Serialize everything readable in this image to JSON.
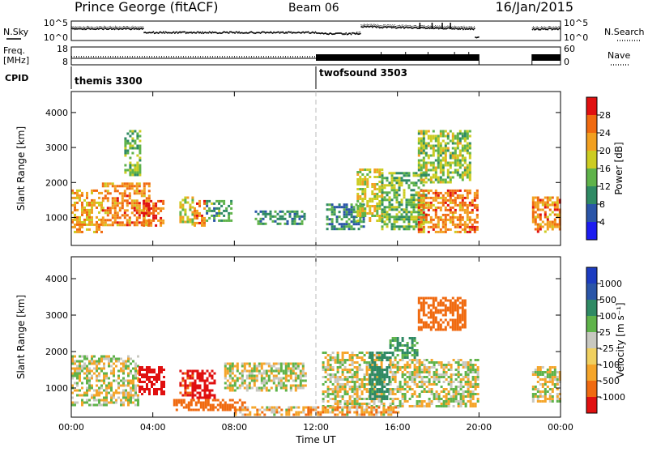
{
  "header": {
    "station": "Prince George (fitACF)",
    "beam": "Beam 06",
    "date": "16/Jan/2015"
  },
  "labels": {
    "nsky": "N.Sky",
    "nsearch": "N.Search",
    "freq_line1": "Freq.",
    "freq_line2": "[MHz]",
    "nave": "Nave",
    "cpid": "CPID",
    "slant_range": "Slant Range [km]",
    "power": "Power [dB]",
    "velocity": "Velocity [m s⁻¹]",
    "time_ut": "Time UT"
  },
  "noise_ticks": {
    "top": "10^5",
    "bottom": "10^0"
  },
  "freq_ticks": {
    "left": [
      "18",
      "8"
    ],
    "right": [
      "60",
      "0"
    ]
  },
  "cpid_segments": [
    {
      "label": "themis 3300",
      "start_hour": 0
    },
    {
      "label": "twofsound 3503",
      "start_hour": 12
    }
  ],
  "colors": {
    "power_scale": [
      "#1c1cf0",
      "#2a55a8",
      "#2f8a64",
      "#5fb34a",
      "#cccc22",
      "#f2a020",
      "#f06a10",
      "#e01010"
    ],
    "velocity_scale": [
      "#e01010",
      "#f06a10",
      "#f5a52a",
      "#f0d060",
      "#c8c8c0",
      "#5fb34a",
      "#2f8a64",
      "#2a55a8",
      "#1c3cc0"
    ],
    "ground_scatter": "#c8c8c0"
  },
  "chart_data": [
    {
      "type": "heatmap",
      "name": "power",
      "xlabel": "Time UT",
      "ylabel": "Slant Range [km]",
      "xlim": [
        0,
        24
      ],
      "ylim": [
        200,
        4600
      ],
      "x_ticks": [
        "00:00",
        "04:00",
        "08:00",
        "12:00",
        "16:00",
        "20:00",
        "00:00"
      ],
      "y_ticks": [
        1000,
        2000,
        3000,
        4000
      ],
      "colorbar_label": "Power [dB]",
      "colorbar_ticks": [
        4,
        8,
        12,
        16,
        20,
        24,
        28
      ],
      "colorbar_range": [
        0,
        32
      ],
      "data_gaps_hours": [
        [
          20.0,
          22.6
        ]
      ],
      "echo_regions": [
        {
          "t0": 0.0,
          "t1": 1.5,
          "r0": 600,
          "r1": 1800,
          "dB": 22
        },
        {
          "t0": 1.5,
          "t1": 3.8,
          "r0": 800,
          "r1": 2000,
          "dB": 24
        },
        {
          "t0": 2.6,
          "t1": 3.4,
          "r0": 2200,
          "r1": 3500,
          "dB": 14
        },
        {
          "t0": 3.5,
          "t1": 4.5,
          "r0": 800,
          "r1": 1500,
          "dB": 26
        },
        {
          "t0": 5.3,
          "t1": 5.9,
          "r0": 800,
          "r1": 1600,
          "dB": 18
        },
        {
          "t0": 6.0,
          "t1": 6.5,
          "r0": 800,
          "r1": 1500,
          "dB": 26
        },
        {
          "t0": 6.6,
          "t1": 7.8,
          "r0": 900,
          "r1": 1500,
          "dB": 12
        },
        {
          "t0": 9.0,
          "t1": 11.4,
          "r0": 800,
          "r1": 1200,
          "dB": 10
        },
        {
          "t0": 12.5,
          "t1": 14.3,
          "r0": 700,
          "r1": 1400,
          "dB": 10
        },
        {
          "t0": 14.0,
          "t1": 15.2,
          "r0": 900,
          "r1": 2400,
          "dB": 18
        },
        {
          "t0": 15.2,
          "t1": 17.4,
          "r0": 700,
          "r1": 2300,
          "dB": 14
        },
        {
          "t0": 17.0,
          "t1": 19.9,
          "r0": 600,
          "r1": 1800,
          "dB": 24
        },
        {
          "t0": 17.0,
          "t1": 19.6,
          "r0": 2000,
          "r1": 3500,
          "dB": 16
        },
        {
          "t0": 22.6,
          "t1": 24.0,
          "r0": 600,
          "r1": 1600,
          "dB": 24
        }
      ]
    },
    {
      "type": "heatmap",
      "name": "velocity",
      "xlabel": "Time UT",
      "ylabel": "Slant Range [km]",
      "xlim": [
        0,
        24
      ],
      "ylim": [
        200,
        4600
      ],
      "x_ticks": [
        "00:00",
        "04:00",
        "08:00",
        "12:00",
        "16:00",
        "20:00",
        "00:00"
      ],
      "y_ticks": [
        1000,
        2000,
        3000,
        4000
      ],
      "colorbar_label": "Velocity [m s⁻¹]",
      "colorbar_ticks": [
        "1000",
        "500",
        "100",
        "25",
        "-25",
        "-100",
        "-500",
        "-1000"
      ],
      "data_gaps_hours": [
        [
          20.0,
          22.6
        ]
      ],
      "echo_regions": [
        {
          "t0": 0.0,
          "t1": 3.3,
          "r0": 500,
          "r1": 1900,
          "v": 0
        },
        {
          "t0": 3.3,
          "t1": 4.5,
          "r0": 800,
          "r1": 1600,
          "v": -800
        },
        {
          "t0": 5.3,
          "t1": 5.9,
          "r0": 800,
          "r1": 1500,
          "v": -500
        },
        {
          "t0": 5.9,
          "t1": 7.0,
          "r0": 700,
          "r1": 1500,
          "v": -600
        },
        {
          "t0": 5.0,
          "t1": 8.5,
          "r0": 400,
          "r1": 700,
          "v": -300
        },
        {
          "t0": 7.5,
          "t1": 11.5,
          "r0": 900,
          "r1": 1700,
          "v": 0
        },
        {
          "t0": 12.3,
          "t1": 15.3,
          "r0": 500,
          "r1": 2000,
          "v": 0
        },
        {
          "t0": 14.6,
          "t1": 15.6,
          "r0": 700,
          "r1": 2000,
          "v": 300
        },
        {
          "t0": 15.6,
          "t1": 17.0,
          "r0": 1800,
          "r1": 2400,
          "v": 120
        },
        {
          "t0": 15.6,
          "t1": 19.9,
          "r0": 500,
          "r1": 1800,
          "v": 0
        },
        {
          "t0": 17.0,
          "t1": 19.3,
          "r0": 2600,
          "r1": 3500,
          "v": -200
        },
        {
          "t0": 8.0,
          "t1": 16.0,
          "r0": 250,
          "r1": 500,
          "v": -60
        },
        {
          "t0": 22.6,
          "t1": 24.0,
          "r0": 600,
          "r1": 1600,
          "v": 0
        }
      ]
    }
  ]
}
